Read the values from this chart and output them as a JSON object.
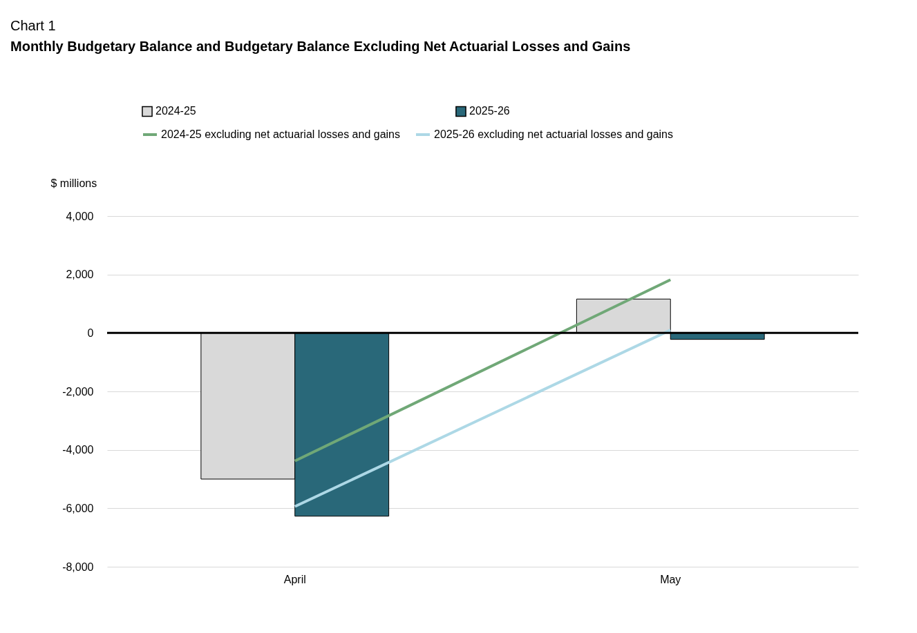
{
  "chart_data": {
    "type": "bar",
    "title": "Monthly Budgetary Balance and Budgetary Balance Excluding Net Actuarial Losses and Gains",
    "ylabel": "$ millions",
    "annotations": [
      "Chart 1"
    ],
    "categories": [
      "April",
      "May"
    ],
    "series": [
      {
        "name": "2024-25",
        "color": "#d9d9d9",
        "values": [
          -5000,
          1160
        ]
      },
      {
        "name": "2025-26",
        "color": "#296879",
        "values": [
          -6270,
          -220
        ]
      },
      {
        "name": "2024-25 excluding net actuarial losses and gains",
        "type": "line",
        "color": "#70a877",
        "values": [
          -4380,
          1820
        ]
      },
      {
        "name": "2025-26 excluding net actuarial losses and gains",
        "type": "line",
        "color": "#add8e6",
        "values": [
          -5940,
          100
        ]
      }
    ],
    "ylim": [
      -8000,
      4000
    ],
    "yticks": [
      {
        "value": -8000,
        "label": "-8,000"
      },
      {
        "value": -6000,
        "label": "-6,000"
      },
      {
        "value": -4000,
        "label": "-4,000"
      },
      {
        "value": -2000,
        "label": "-2,000"
      },
      0,
      {
        "value": 2000,
        "label": "2,000"
      },
      {
        "value": 4000,
        "label": "4,000"
      }
    ],
    "ref_lines": [
      {
        "axis": "y",
        "value": 0,
        "color": "#000000"
      }
    ],
    "grid": "y",
    "legend": "top"
  }
}
